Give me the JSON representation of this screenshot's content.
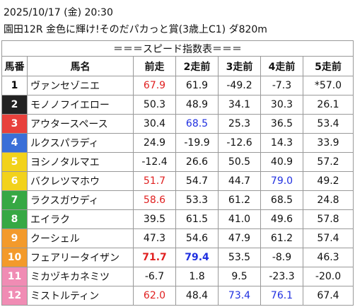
{
  "header": {
    "date": "2025/10/17 (金) 20:30",
    "race": "園田12R 金色に輝け!そのだパカっと賞(3歳上C1) ダ820m"
  },
  "table": {
    "title": "＝＝＝スピード指数表＝＝＝",
    "columns": [
      "馬番",
      "馬名",
      "前走",
      "2走前",
      "3走前",
      "4走前",
      "5走前"
    ],
    "rows": [
      {
        "number": "1",
        "frame_color": "#ffffff",
        "number_color": "#000000",
        "name": "ヴァンセゾニエ",
        "cells": [
          {
            "text": "67.9",
            "color": "#e02020"
          },
          "61.9",
          "-49.2",
          "-7.3",
          "*57.0"
        ]
      },
      {
        "number": "2",
        "frame_color": "#222222",
        "number_color": "#ffffff",
        "name": "モノノフイエロー",
        "cells": [
          "50.3",
          "48.9",
          "34.1",
          "30.3",
          "26.1"
        ]
      },
      {
        "number": "3",
        "frame_color": "#e8413c",
        "number_color": "#ffffff",
        "name": "アウタースペース",
        "cells": [
          "30.4",
          {
            "text": "68.5",
            "color": "#2030e0"
          },
          "25.3",
          "36.5",
          "53.4"
        ]
      },
      {
        "number": "4",
        "frame_color": "#3a6fd8",
        "number_color": "#ffffff",
        "name": "ルクスパラディ",
        "cells": [
          "24.9",
          "-19.9",
          "-12.6",
          "14.3",
          "33.9"
        ]
      },
      {
        "number": "5",
        "frame_color": "#f2d21b",
        "number_color": "#ffffff",
        "name": "ヨシノタルマエ",
        "cells": [
          "-12.4",
          "26.6",
          "50.5",
          "40.9",
          "57.2"
        ]
      },
      {
        "number": "6",
        "frame_color": "#f2d21b",
        "number_color": "#ffffff",
        "name": "バクレツマホウ",
        "cells": [
          {
            "text": "51.7",
            "color": "#e02020"
          },
          "54.7",
          "44.7",
          {
            "text": "79.0",
            "color": "#2030e0"
          },
          "49.2"
        ]
      },
      {
        "number": "7",
        "frame_color": "#36a844",
        "number_color": "#ffffff",
        "name": "ラクスガウディ",
        "cells": [
          {
            "text": "58.6",
            "color": "#e02020"
          },
          "53.3",
          "61.2",
          "68.5",
          "24.8"
        ]
      },
      {
        "number": "8",
        "frame_color": "#36a844",
        "number_color": "#ffffff",
        "name": "エイラク",
        "cells": [
          "39.5",
          "61.5",
          "41.0",
          "49.6",
          "57.8"
        ]
      },
      {
        "number": "9",
        "frame_color": "#f39a2b",
        "number_color": "#ffffff",
        "name": "クーシェル",
        "cells": [
          "47.3",
          "54.6",
          "47.9",
          "61.2",
          "57.4"
        ]
      },
      {
        "number": "10",
        "frame_color": "#f39a2b",
        "number_color": "#ffffff",
        "name": "フェアリータイザン",
        "cells": [
          {
            "text": "71.7",
            "color": "#e02020",
            "bold": true
          },
          {
            "text": "79.4",
            "color": "#2030e0",
            "bold": true
          },
          "53.5",
          "-8.9",
          "46.3"
        ]
      },
      {
        "number": "11",
        "frame_color": "#f08cb4",
        "number_color": "#ffffff",
        "name": "ミカヅキカネミツ",
        "cells": [
          "-6.7",
          "1.8",
          "9.5",
          "-23.3",
          "-20.0"
        ]
      },
      {
        "number": "12",
        "frame_color": "#f08cb4",
        "number_color": "#ffffff",
        "name": "ミストルティン",
        "cells": [
          {
            "text": "62.0",
            "color": "#e02020"
          },
          "48.4",
          {
            "text": "73.4",
            "color": "#2030e0"
          },
          {
            "text": "76.1",
            "color": "#2030e0"
          },
          "67.4"
        ]
      }
    ]
  }
}
